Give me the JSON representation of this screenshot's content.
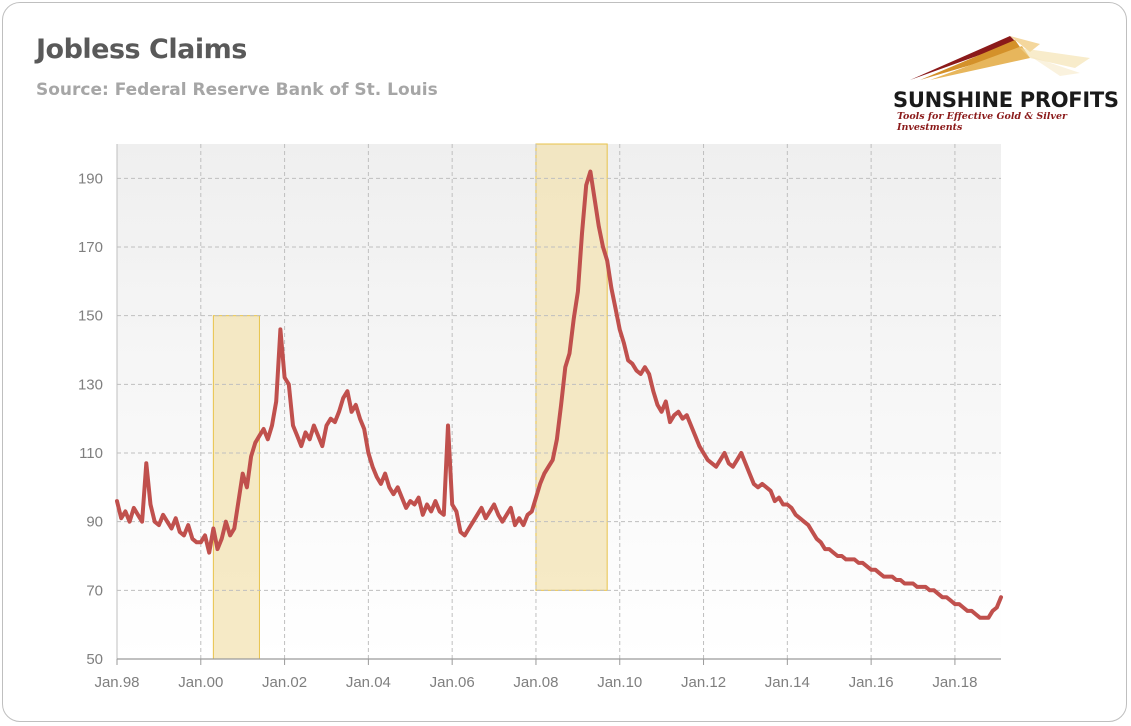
{
  "header": {
    "title": "Jobless Claims",
    "subtitle": "Source: Federal Reserve Bank of St. Louis"
  },
  "logo": {
    "name": "SUNSHINE PROFITS",
    "tagline": "Tools for Effective Gold & Silver Investments"
  },
  "colors": {
    "line": "#c0504d",
    "highlight_fill": "#f3e3b3",
    "highlight_stroke": "#e8c34a",
    "grid": "#bfbfbf",
    "plot_bg_top": "#efefef",
    "plot_bg_bottom": "#ffffff"
  },
  "chart_data": {
    "type": "line",
    "title": "Jobless Claims",
    "subtitle": "Source: Federal Reserve Bank of St. Louis",
    "xlabel": "",
    "ylabel": "",
    "ylim": [
      50,
      200
    ],
    "yticks": [
      50,
      70,
      90,
      110,
      130,
      150,
      170,
      190
    ],
    "xlim": [
      1998.0,
      2019.1
    ],
    "xticks": [
      {
        "x": 1998,
        "label": "Jan.98"
      },
      {
        "x": 2000,
        "label": "Jan.00"
      },
      {
        "x": 2002,
        "label": "Jan.02"
      },
      {
        "x": 2004,
        "label": "Jan.04"
      },
      {
        "x": 2006,
        "label": "Jan.06"
      },
      {
        "x": 2008,
        "label": "Jan.08"
      },
      {
        "x": 2010,
        "label": "Jan.10"
      },
      {
        "x": 2012,
        "label": "Jan.12"
      },
      {
        "x": 2014,
        "label": "Jan.14"
      },
      {
        "x": 2016,
        "label": "Jan.16"
      },
      {
        "x": 2018,
        "label": "Jan.18"
      }
    ],
    "grid": true,
    "legend": "none",
    "highlights": [
      {
        "x0": 2000.3,
        "x1": 2001.4,
        "y0": 50,
        "y1": 150
      },
      {
        "x0": 2008.0,
        "x1": 2009.7,
        "y0": 70,
        "y1": 200
      }
    ],
    "series": [
      {
        "x": [
          1998.0,
          1998.1,
          1998.2,
          1998.3,
          1998.4,
          1998.5,
          1998.6,
          1998.7,
          1998.8,
          1998.9,
          1999.0,
          1999.1,
          1999.2,
          1999.3,
          1999.4,
          1999.5,
          1999.6,
          1999.7,
          1999.8,
          1999.9,
          2000.0,
          2000.1,
          2000.2,
          2000.3,
          2000.4,
          2000.5,
          2000.6,
          2000.7,
          2000.8,
          2000.9,
          2001.0,
          2001.1,
          2001.2,
          2001.3,
          2001.4,
          2001.5,
          2001.6,
          2001.7,
          2001.8,
          2001.9,
          2002.0,
          2002.1,
          2002.2,
          2002.3,
          2002.4,
          2002.5,
          2002.6,
          2002.7,
          2002.8,
          2002.9,
          2003.0,
          2003.1,
          2003.2,
          2003.3,
          2003.4,
          2003.5,
          2003.6,
          2003.7,
          2003.8,
          2003.9,
          2004.0,
          2004.1,
          2004.2,
          2004.3,
          2004.4,
          2004.5,
          2004.6,
          2004.7,
          2004.8,
          2004.9,
          2005.0,
          2005.1,
          2005.2,
          2005.3,
          2005.4,
          2005.5,
          2005.6,
          2005.7,
          2005.8,
          2005.9,
          2006.0,
          2006.1,
          2006.2,
          2006.3,
          2006.4,
          2006.5,
          2006.6,
          2006.7,
          2006.8,
          2006.9,
          2007.0,
          2007.1,
          2007.2,
          2007.3,
          2007.4,
          2007.5,
          2007.6,
          2007.7,
          2007.8,
          2007.9,
          2008.0,
          2008.1,
          2008.2,
          2008.3,
          2008.4,
          2008.5,
          2008.6,
          2008.7,
          2008.8,
          2008.9,
          2009.0,
          2009.1,
          2009.2,
          2009.3,
          2009.4,
          2009.5,
          2009.6,
          2009.7,
          2009.8,
          2009.9,
          2010.0,
          2010.1,
          2010.2,
          2010.3,
          2010.4,
          2010.5,
          2010.6,
          2010.7,
          2010.8,
          2010.9,
          2011.0,
          2011.1,
          2011.2,
          2011.3,
          2011.4,
          2011.5,
          2011.6,
          2011.7,
          2011.8,
          2011.9,
          2012.0,
          2012.1,
          2012.2,
          2012.3,
          2012.4,
          2012.5,
          2012.6,
          2012.7,
          2012.8,
          2012.9,
          2013.0,
          2013.1,
          2013.2,
          2013.3,
          2013.4,
          2013.5,
          2013.6,
          2013.7,
          2013.8,
          2013.9,
          2014.0,
          2014.1,
          2014.2,
          2014.3,
          2014.4,
          2014.5,
          2014.6,
          2014.7,
          2014.8,
          2014.9,
          2015.0,
          2015.1,
          2015.2,
          2015.3,
          2015.4,
          2015.5,
          2015.6,
          2015.7,
          2015.8,
          2015.9,
          2016.0,
          2016.1,
          2016.2,
          2016.3,
          2016.4,
          2016.5,
          2016.6,
          2016.7,
          2016.8,
          2016.9,
          2017.0,
          2017.1,
          2017.2,
          2017.3,
          2017.4,
          2017.5,
          2017.6,
          2017.7,
          2017.8,
          2017.9,
          2018.0,
          2018.1,
          2018.2,
          2018.3,
          2018.4,
          2018.5,
          2018.6,
          2018.7,
          2018.8,
          2018.9,
          2019.0,
          2019.1
        ],
        "values": [
          96,
          91,
          93,
          90,
          94,
          92,
          90,
          107,
          95,
          90,
          89,
          92,
          90,
          88,
          91,
          87,
          86,
          89,
          85,
          84,
          84,
          86,
          81,
          88,
          82,
          85,
          90,
          86,
          88,
          96,
          104,
          100,
          109,
          113,
          115,
          117,
          114,
          118,
          125,
          146,
          132,
          130,
          118,
          115,
          112,
          116,
          114,
          118,
          115,
          112,
          118,
          120,
          119,
          122,
          126,
          128,
          122,
          124,
          120,
          117,
          110,
          106,
          103,
          101,
          104,
          100,
          98,
          100,
          97,
          94,
          96,
          95,
          97,
          92,
          95,
          93,
          96,
          93,
          92,
          118,
          95,
          93,
          87,
          86,
          88,
          90,
          92,
          94,
          91,
          93,
          95,
          92,
          90,
          92,
          94,
          89,
          91,
          89,
          92,
          93,
          97,
          101,
          104,
          106,
          108,
          114,
          124,
          135,
          139,
          149,
          157,
          174,
          188,
          192,
          184,
          176,
          170,
          166,
          158,
          152,
          146,
          142,
          137,
          136,
          134,
          133,
          135,
          133,
          128,
          124,
          122,
          125,
          119,
          121,
          122,
          120,
          121,
          118,
          115,
          112,
          110,
          108,
          107,
          106,
          108,
          110,
          107,
          106,
          108,
          110,
          107,
          104,
          101,
          100,
          101,
          100,
          99,
          96,
          97,
          95,
          95,
          94,
          92,
          91,
          90,
          89,
          87,
          85,
          84,
          82,
          82,
          81,
          80,
          80,
          79,
          79,
          79,
          78,
          78,
          77,
          76,
          76,
          75,
          74,
          74,
          74,
          73,
          73,
          72,
          72,
          72,
          71,
          71,
          71,
          70,
          70,
          69,
          68,
          68,
          67,
          66,
          66,
          65,
          64,
          64,
          63,
          62,
          62,
          62,
          64,
          65,
          68
        ]
      }
    ]
  }
}
